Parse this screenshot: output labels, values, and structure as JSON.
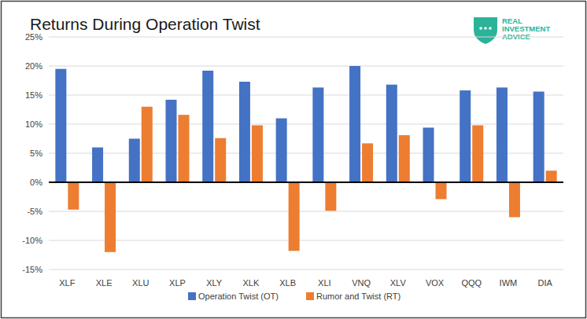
{
  "chart_data": {
    "type": "bar",
    "title": "Returns During Operation Twist",
    "annotations": [
      "REAL",
      "INVESTMENT",
      "ADVICE"
    ],
    "categories": [
      "XLF",
      "XLE",
      "XLU",
      "XLP",
      "XLY",
      "XLK",
      "XLB",
      "XLI",
      "VNQ",
      "XLV",
      "VOX",
      "QQQ",
      "IWM",
      "DIA"
    ],
    "series": [
      {
        "name": "Operation Twist (OT)",
        "color": "#4472c4",
        "values": [
          19.5,
          6,
          7.5,
          14.2,
          19.2,
          17.3,
          11,
          16.3,
          20,
          16.8,
          9.4,
          15.8,
          16.3,
          15.6
        ]
      },
      {
        "name": "Rumor and Twist (RT)",
        "color": "#ed7d31",
        "values": [
          -4.7,
          -12,
          13,
          11.6,
          7.6,
          9.8,
          -11.8,
          -4.9,
          6.7,
          8.1,
          -2.9,
          9.8,
          -6,
          2
        ]
      }
    ],
    "ylim": [
      -15,
      25
    ],
    "yticks": [
      {
        "value": -15,
        "label": "-15%"
      },
      {
        "value": -10,
        "label": "-10%"
      },
      {
        "value": -5,
        "label": "-5%"
      },
      {
        "value": 0,
        "label": "0%"
      },
      {
        "value": 5,
        "label": "5%"
      },
      {
        "value": 10,
        "label": "10%"
      },
      {
        "value": 15,
        "label": "15%"
      },
      {
        "value": 20,
        "label": "20%"
      },
      {
        "value": 25,
        "label": "25%"
      }
    ],
    "grid": true,
    "legend": "bottom"
  }
}
